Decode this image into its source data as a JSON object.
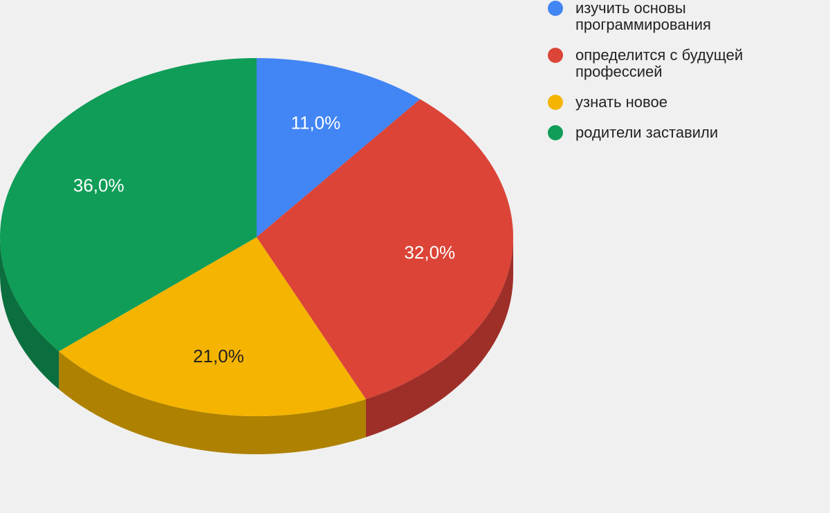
{
  "chart_data": {
    "type": "pie",
    "variant": "3d",
    "categories": [
      "изучить основы программирования",
      "определится с будущей профессией",
      "узнать новое",
      "родители заставили"
    ],
    "values": [
      11.0,
      32.0,
      21.0,
      36.0
    ],
    "labels": [
      "11,0%",
      "32,0%",
      "21,0%",
      "36,0%"
    ],
    "colors": [
      "#4285f4",
      "#db4437",
      "#f4b400",
      "#0f9d58"
    ],
    "side_colors": [
      "#2f63b8",
      "#9e2f28",
      "#ae8100",
      "#0b6e3e"
    ],
    "label_colors": [
      "#ffffff",
      "#ffffff",
      "#222222",
      "#ffffff"
    ],
    "legend_position": "top-right",
    "start_angle": "12 o'clock",
    "direction": "clockwise"
  }
}
